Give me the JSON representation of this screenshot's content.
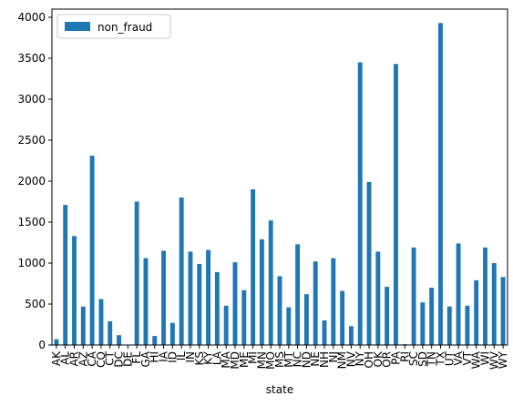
{
  "chart_data": {
    "type": "bar",
    "xlabel": "state",
    "categories": [
      "AK",
      "AL",
      "AR",
      "AZ",
      "CA",
      "CO",
      "CT",
      "DC",
      "DE",
      "FL",
      "GA",
      "HI",
      "IA",
      "ID",
      "IL",
      "IN",
      "KS",
      "KY",
      "LA",
      "MA",
      "MD",
      "ME",
      "MI",
      "MN",
      "MO",
      "MS",
      "MT",
      "NC",
      "ND",
      "NE",
      "NH",
      "NJ",
      "NM",
      "NV",
      "NY",
      "OH",
      "OK",
      "OR",
      "PA",
      "RI",
      "SC",
      "SD",
      "TN",
      "TX",
      "UT",
      "VA",
      "VT",
      "WA",
      "WI",
      "WV",
      "WY"
    ],
    "series": [
      {
        "name": "non_fraud",
        "color": "#1f77b4",
        "values": [
          70,
          1710,
          1330,
          470,
          2310,
          560,
          290,
          120,
          0,
          1750,
          1060,
          110,
          1150,
          270,
          1800,
          1140,
          990,
          1160,
          890,
          480,
          1010,
          670,
          1900,
          1290,
          1520,
          840,
          460,
          1230,
          620,
          1020,
          300,
          1060,
          660,
          230,
          3450,
          1990,
          1140,
          710,
          3430,
          10,
          1190,
          520,
          700,
          3930,
          470,
          1240,
          480,
          790,
          1190,
          1000,
          830
        ]
      }
    ],
    "ylim": [
      0,
      4100
    ],
    "yticks": [
      0,
      500,
      1000,
      1500,
      2000,
      2500,
      3000,
      3500,
      4000
    ],
    "legend": "upper left"
  }
}
